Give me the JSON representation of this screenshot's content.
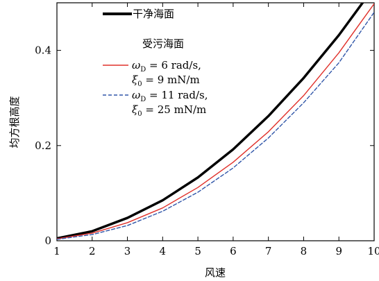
{
  "chart_data": {
    "type": "line",
    "xlabel": "风速",
    "ylabel": "均方根高度",
    "xlim": [
      1,
      10
    ],
    "ylim": [
      0,
      0.5
    ],
    "x_ticks": [
      1,
      2,
      3,
      4,
      5,
      6,
      7,
      8,
      9,
      10
    ],
    "y_ticks": [
      0,
      0.2,
      0.4
    ],
    "y_tick_labels": [
      "0",
      "0.2",
      "0.4"
    ],
    "grid": false,
    "legend_position": "top-left",
    "x": [
      1,
      2,
      3,
      4,
      5,
      6,
      7,
      8,
      9,
      10
    ],
    "series": [
      {
        "name": "干净海面",
        "color": "#000000",
        "style": "solid-thick",
        "values": [
          0.005,
          0.02,
          0.048,
          0.085,
          0.133,
          0.192,
          0.262,
          0.342,
          0.432,
          0.533
        ]
      },
      {
        "name": "ωD = 6 rad/s, ξ0 = 9 mN/m",
        "color": "#e0302a",
        "style": "solid-thin",
        "values": [
          0.004,
          0.016,
          0.038,
          0.069,
          0.112,
          0.165,
          0.229,
          0.305,
          0.395,
          0.498
        ]
      },
      {
        "name": "ωD = 11 rad/s, ξ0 = 25 mN/m",
        "color": "#2f55a8",
        "style": "dashed",
        "values": [
          0.003,
          0.013,
          0.032,
          0.062,
          0.102,
          0.153,
          0.216,
          0.29,
          0.374,
          0.48
        ]
      }
    ],
    "legend": {
      "clean_label": "干净海面",
      "polluted_header": "受污海面",
      "red_line1_unit": " = 6 rad/s,",
      "red_line2_unit": " = 9 mN/m",
      "blue_line1_unit": " = 11 rad/s,",
      "blue_line2_unit": " = 25 mN/m",
      "omega_symbol": "ω",
      "omega_sub": "D",
      "xi_symbol": "ξ",
      "xi_sub": "0"
    }
  }
}
